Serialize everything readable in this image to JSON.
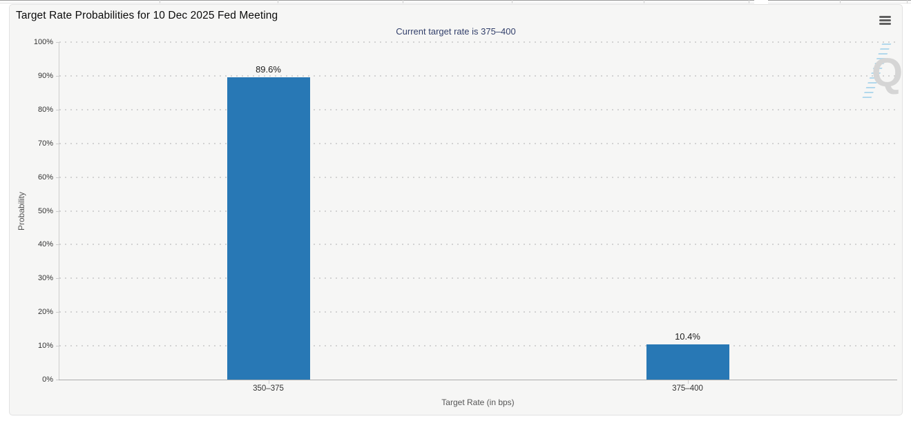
{
  "icons": {
    "menu": "hamburger-icon"
  },
  "watermark": {
    "letter": "Q"
  },
  "colors": {
    "bar": "#2878b5",
    "subtitle_text": "#33406b",
    "panel_background": "#f6f6f5",
    "grid_dots": "#d2d2d2"
  },
  "chart_data": {
    "type": "bar",
    "title": "Target Rate Probabilities for 10 Dec 2025 Fed Meeting",
    "subtitle": "Current target rate is 375–400",
    "categories": [
      "350–375",
      "375–400"
    ],
    "values": [
      89.6,
      10.4
    ],
    "value_labels": [
      "89.6%",
      "10.4%"
    ],
    "xlabel": "Target Rate (in bps)",
    "ylabel": "Probability",
    "ylim": [
      0,
      100
    ],
    "ytick_step": 10,
    "ytick_labels": [
      "0%",
      "10%",
      "20%",
      "30%",
      "40%",
      "50%",
      "60%",
      "70%",
      "80%",
      "90%",
      "100%"
    ],
    "legend": "none",
    "grid": "dotted-horizontal",
    "bar_color": "#2878b5"
  }
}
